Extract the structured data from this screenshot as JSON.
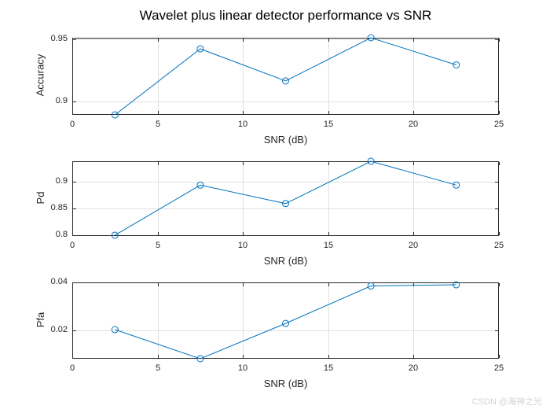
{
  "title": "Wavelet plus linear detector performance vs SNR",
  "watermark": "CSDN @海神之光",
  "colors": {
    "line": "#0072BD",
    "axis": "#262626",
    "grid": "#e0e0e0",
    "title": "#000000",
    "watermark": "#d4d4d4",
    "background": "#ffffff"
  },
  "chart_data": [
    {
      "type": "line",
      "name": "accuracy-vs-snr",
      "x": [
        2.5,
        7.5,
        12.5,
        17.5,
        22.5
      ],
      "values": [
        0.889,
        0.9425,
        0.9165,
        0.9515,
        0.9295
      ],
      "xlabel": "SNR (dB)",
      "ylabel": "Accuracy",
      "xlim": [
        0,
        25
      ],
      "ylim": [
        0.889,
        0.9515
      ],
      "xticks": [
        0,
        5,
        10,
        15,
        20,
        25
      ],
      "xtick_labels": [
        "0",
        "5",
        "10",
        "15",
        "20",
        "25"
      ],
      "yticks": [
        0.9,
        0.95
      ],
      "ytick_labels": [
        "0.9",
        "0.95"
      ],
      "marker": "circle",
      "grid": true,
      "legend": null
    },
    {
      "type": "line",
      "name": "pd-vs-snr",
      "x": [
        2.5,
        7.5,
        12.5,
        17.5,
        22.5
      ],
      "values": [
        0.8005,
        0.894,
        0.8595,
        0.9385,
        0.894
      ],
      "xlabel": "SNR (dB)",
      "ylabel": "Pd",
      "xlim": [
        0,
        25
      ],
      "ylim": [
        0.799,
        0.9385
      ],
      "xticks": [
        0,
        5,
        10,
        15,
        20,
        25
      ],
      "xtick_labels": [
        "0",
        "5",
        "10",
        "15",
        "20",
        "25"
      ],
      "yticks": [
        0.8,
        0.85,
        0.9
      ],
      "ytick_labels": [
        "0.8",
        "0.85",
        "0.9"
      ],
      "marker": "circle",
      "grid": true,
      "legend": null
    },
    {
      "type": "line",
      "name": "pfa-vs-snr",
      "x": [
        2.5,
        7.5,
        12.5,
        17.5,
        22.5
      ],
      "values": [
        0.0202,
        0.008,
        0.0228,
        0.0385,
        0.039
      ],
      "xlabel": "SNR (dB)",
      "ylabel": "Pfa",
      "xlim": [
        0,
        25
      ],
      "ylim": [
        0.008,
        0.04
      ],
      "xticks": [
        0,
        5,
        10,
        15,
        20,
        25
      ],
      "xtick_labels": [
        "0",
        "5",
        "10",
        "15",
        "20",
        "25"
      ],
      "yticks": [
        0.02,
        0.04
      ],
      "ytick_labels": [
        "0.02",
        "0.04"
      ],
      "marker": "circle",
      "grid": true,
      "legend": null
    }
  ]
}
